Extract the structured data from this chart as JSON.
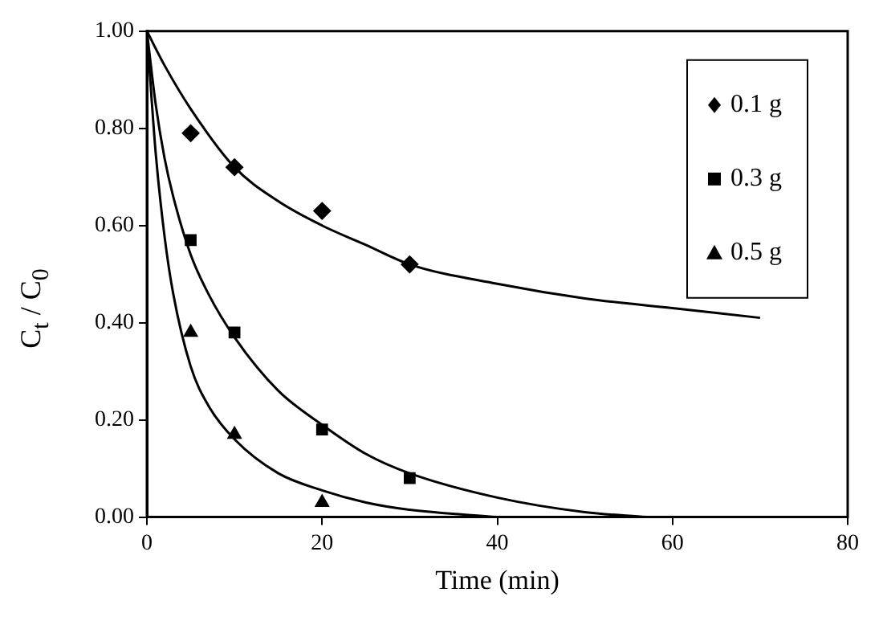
{
  "chart_data": {
    "type": "scatter",
    "xlabel": "Time (min)",
    "ylabel": "C$_{t}$ / C$_{0}$",
    "xlim": [
      0,
      80
    ],
    "xticks": [
      0,
      20,
      40,
      60,
      80
    ],
    "ylim": [
      0,
      1
    ],
    "yticks": [
      {
        "value": 0,
        "label": "0.00"
      },
      {
        "value": 0.2,
        "label": "0.20"
      },
      {
        "value": 0.4,
        "label": "0.40"
      },
      {
        "value": 0.6,
        "label": "0.60"
      },
      {
        "value": 0.8,
        "label": "0.80"
      },
      {
        "value": 1,
        "label": "1.00"
      }
    ],
    "grid": false,
    "legend": "top right",
    "series": [
      {
        "name": "0.1 g",
        "color": "#000000",
        "marker": "diamond",
        "x": [
          5,
          10,
          20,
          30
        ],
        "values": [
          0.79,
          0.72,
          0.63,
          0.52
        ]
      },
      {
        "name": "0.3 g",
        "color": "#000000",
        "marker": "square",
        "x": [
          5,
          10,
          20,
          30
        ],
        "values": [
          0.57,
          0.38,
          0.18,
          0.08
        ]
      },
      {
        "name": "0.5 g",
        "color": "#000000",
        "marker": "triangle",
        "x": [
          5,
          10,
          20
        ],
        "values": [
          0.38,
          0.17,
          0.03
        ]
      },
      {
        "type": "line",
        "color": "#000000",
        "marker": "none",
        "x": [
          0,
          2,
          5,
          10,
          15,
          20,
          25,
          30,
          40,
          50,
          60,
          70
        ],
        "values": [
          1,
          0.93,
          0.84,
          0.72,
          0.65,
          0.6,
          0.56,
          0.52,
          0.48,
          0.45,
          0.43,
          0.41
        ]
      },
      {
        "type": "line",
        "color": "#000000",
        "marker": "none",
        "x": [
          0,
          1,
          2,
          3,
          5,
          7,
          10,
          15,
          20,
          25,
          30,
          40,
          50,
          57
        ],
        "values": [
          1,
          0.85,
          0.74,
          0.66,
          0.54,
          0.46,
          0.37,
          0.26,
          0.19,
          0.13,
          0.09,
          0.04,
          0.01,
          0
        ]
      },
      {
        "type": "line",
        "color": "#000000",
        "marker": "none",
        "x": [
          0,
          1,
          2,
          3,
          5,
          7,
          10,
          15,
          20,
          25,
          30,
          40
        ],
        "values": [
          1,
          0.75,
          0.58,
          0.46,
          0.31,
          0.23,
          0.16,
          0.09,
          0.055,
          0.03,
          0.015,
          0
        ]
      }
    ]
  }
}
